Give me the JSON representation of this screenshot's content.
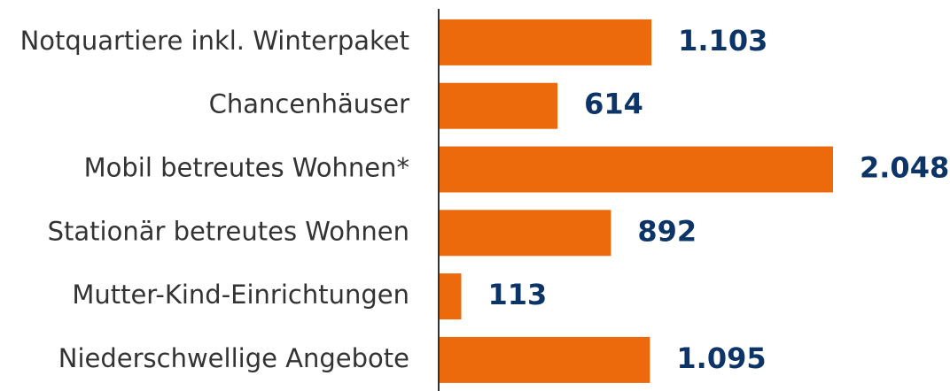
{
  "chart_data": {
    "type": "bar",
    "orientation": "horizontal",
    "categories": [
      "Notquartiere inkl. Winterpaket",
      "Chancenhäuser",
      "Mobil betreutes Wohnen*",
      "Stationär betreutes Wohnen",
      "Mutter-Kind-Einrichtungen",
      "Niederschwellige Angebote"
    ],
    "values": [
      1103,
      614,
      2048,
      892,
      113,
      1095
    ],
    "value_labels": [
      "1.103",
      "614",
      "2.048",
      "892",
      "113",
      "1.095"
    ],
    "color": "#ec6a0c"
  }
}
